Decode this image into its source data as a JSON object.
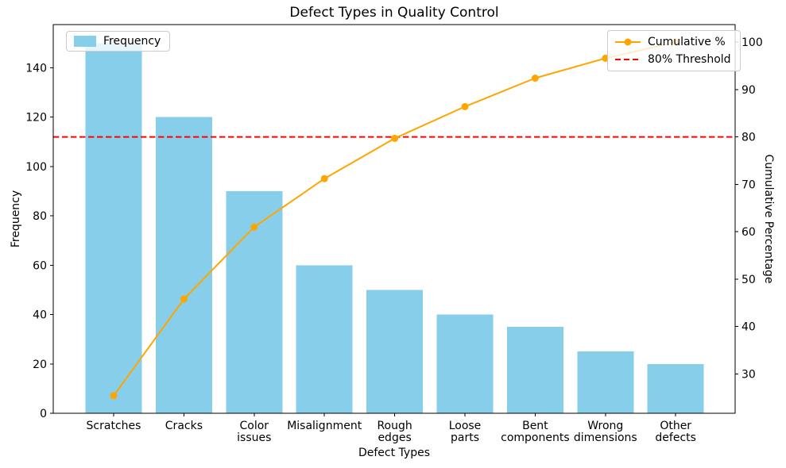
{
  "chart_data": {
    "type": "bar",
    "subtype": "pareto",
    "title": "Defect Types in Quality Control",
    "xlabel": "Defect Types",
    "ylabel_left": "Frequency",
    "ylabel_right": "Cumulative Percentage",
    "category_names": [
      "Scratches",
      "Cracks",
      "Color issues",
      "Misalignment",
      "Rough edges",
      "Loose parts",
      "Bent components",
      "Wrong dimensions",
      "Other defects"
    ],
    "categories": [
      [
        "Scratches"
      ],
      [
        "Cracks"
      ],
      [
        "Color",
        "issues"
      ],
      [
        "Misalignment"
      ],
      [
        "Rough",
        "edges"
      ],
      [
        "Loose",
        "parts"
      ],
      [
        "Bent",
        "components"
      ],
      [
        "Wrong",
        "dimensions"
      ],
      [
        "Other",
        "defects"
      ]
    ],
    "series": [
      {
        "name": "Frequency",
        "type": "bar",
        "values": [
          150,
          120,
          90,
          60,
          50,
          40,
          35,
          25,
          20
        ]
      },
      {
        "name": "Cumulative %",
        "type": "line",
        "values": [
          25.4,
          45.8,
          61.0,
          71.2,
          79.7,
          86.4,
          92.4,
          96.6,
          100.0
        ]
      }
    ],
    "threshold": {
      "value": 80,
      "label": "80% Threshold"
    },
    "ylim_left": [
      0,
      157.5
    ],
    "ylim_right": [
      21.7,
      103.7
    ],
    "yticks_left": [
      0,
      20,
      40,
      60,
      80,
      100,
      120,
      140
    ],
    "yticks_right": [
      30,
      40,
      50,
      60,
      70,
      80,
      90,
      100
    ],
    "legend": {
      "frequency_label": "Frequency",
      "cumulative_label": "Cumulative %",
      "threshold_label": "80% Threshold"
    },
    "colors": {
      "bar": "#87CEEB",
      "line": "#FFA500",
      "threshold": "#FF0000",
      "axis": "#000000",
      "text": "#000000",
      "legend_border": "#cccccc"
    }
  }
}
